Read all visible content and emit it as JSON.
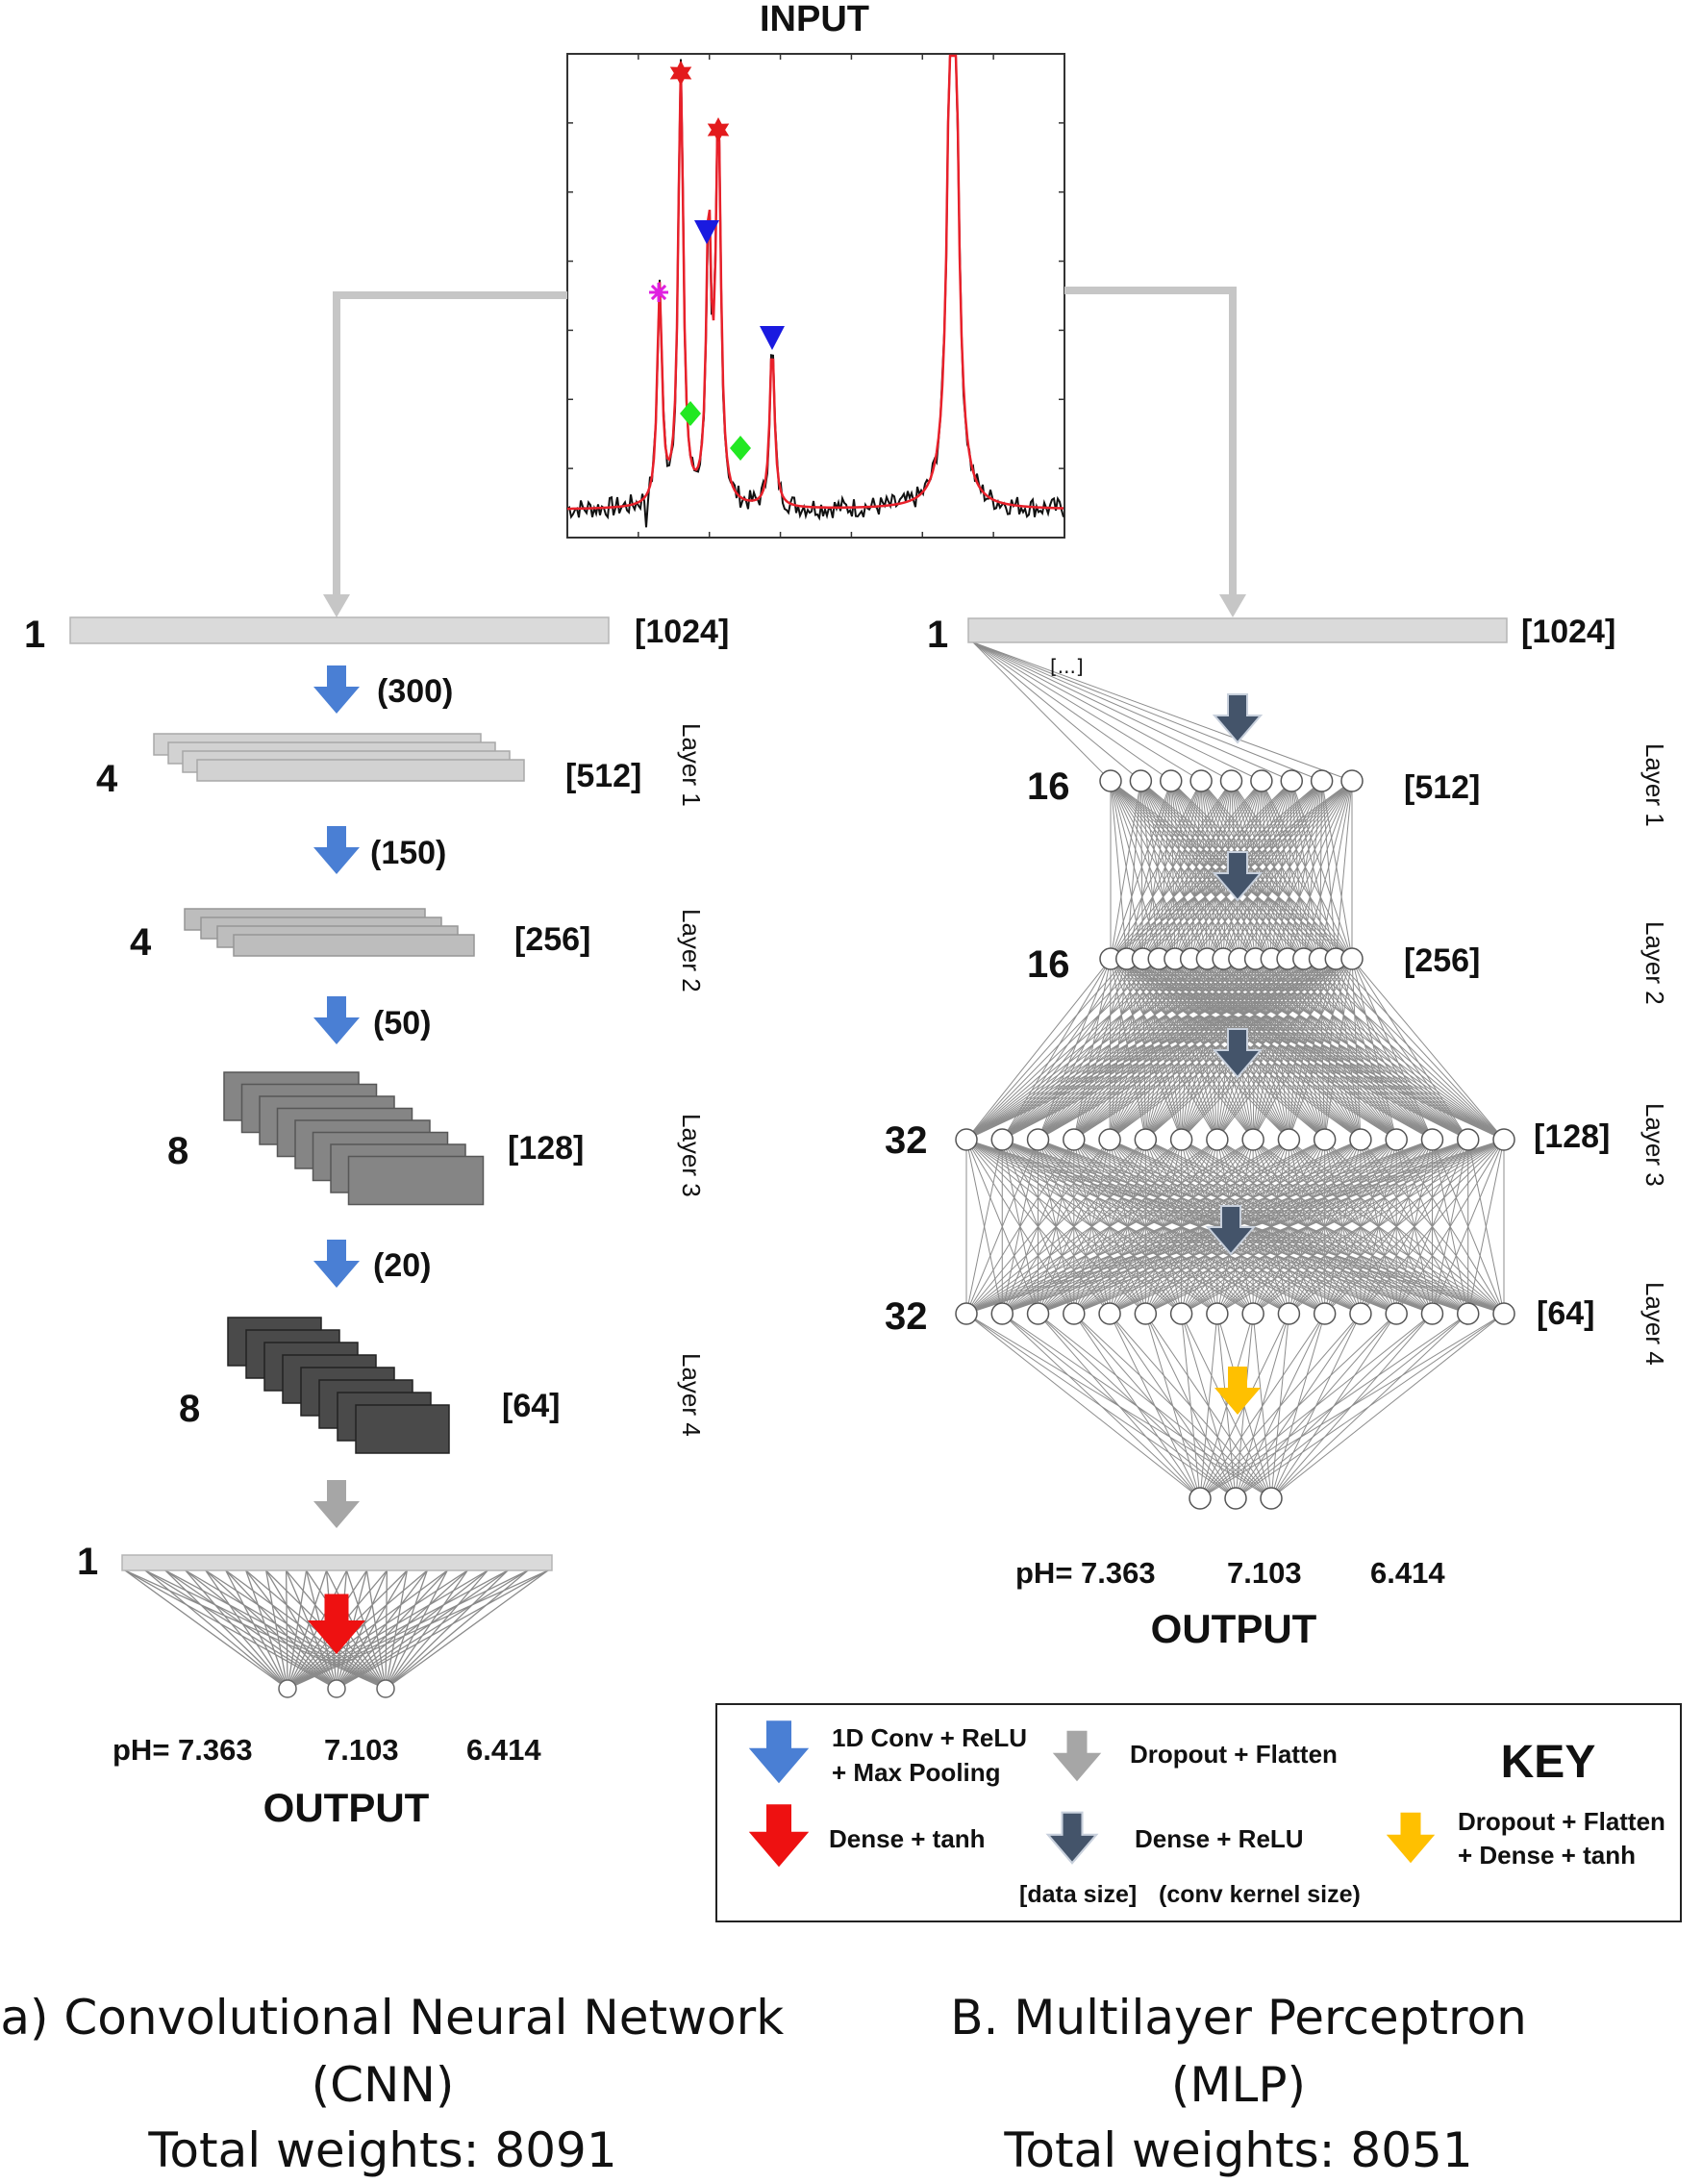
{
  "input_title": "INPUT",
  "cnn": {
    "input": {
      "count": "1",
      "size": "[1024]"
    },
    "layers": [
      {
        "count": "4",
        "size": "[512]",
        "kernel": "(300)",
        "label": "Layer 1"
      },
      {
        "count": "4",
        "size": "[256]",
        "kernel": "(150)",
        "label": "Layer 2"
      },
      {
        "count": "8",
        "size": "[128]",
        "kernel": "(50)",
        "label": "Layer 3"
      },
      {
        "count": "8",
        "size": "[64]",
        "kernel": "(20)",
        "label": "Layer 4"
      }
    ],
    "flatten_count": "1",
    "output_values": {
      "first": "pH= 7.363",
      "second": "7.103",
      "third": "6.414"
    },
    "output_label": "OUTPUT",
    "caption": {
      "line1": "(a) Convolutional Neural Network",
      "line2": "(CNN)",
      "line3": "Total weights: 8091"
    }
  },
  "mlp": {
    "input": {
      "count": "1",
      "size": "[1024]"
    },
    "ellipsis": "[...]",
    "layers": [
      {
        "count": "16",
        "size": "[512]",
        "label": "Layer 1"
      },
      {
        "count": "16",
        "size": "[256]",
        "label": "Layer 2"
      },
      {
        "count": "32",
        "size": "[128]",
        "label": "Layer 3"
      },
      {
        "count": "32",
        "size": "[64]",
        "label": "Layer 4"
      }
    ],
    "output_values": {
      "first": "pH= 7.363",
      "second": "7.103",
      "third": "6.414"
    },
    "output_label": "OUTPUT",
    "caption": {
      "line1": "B. Multilayer Perceptron",
      "line2": "(MLP)",
      "line3": "Total weights: 8051"
    }
  },
  "key": {
    "title": "KEY",
    "conv_line1": "1D Conv + ReLU",
    "conv_line2": "+ Max Pooling",
    "dropout_flatten": "Dropout + Flatten",
    "dense_tanh": "Dense + tanh",
    "dense_relu": "Dense + ReLU",
    "dfd_line1": "Dropout + Flatten",
    "dfd_line2": "+ Dense + tanh",
    "data_size": "[data size]",
    "kernel_size": "(conv kernel size)"
  },
  "colors": {
    "conv_blue": "#4a7fd4",
    "dense_relu": "#44546a",
    "dropout_gray": "#a6a6a6",
    "dense_tanh_red": "#ee1111",
    "dfd_yellow": "#ffc000",
    "spectrum_fit": "#e8202a",
    "spectrum_raw": "#111111",
    "marker_star": "#e31a1c",
    "marker_triangle": "#1a1ae0",
    "marker_diamond": "#22e822",
    "marker_asterisk": "#e020e0"
  }
}
